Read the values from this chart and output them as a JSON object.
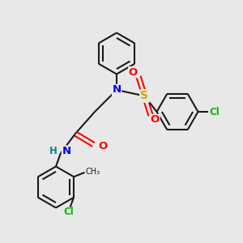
{
  "bg_color": "#e8e8e8",
  "bond_color": "#1a1a1a",
  "N_color": "#0000ee",
  "O_color": "#ff0000",
  "S_color": "#ccaa00",
  "Cl_color": "#00bb00",
  "H_color": "#008888",
  "line_width": 1.5,
  "font_size": 8.5,
  "fig_size": [
    3.0,
    3.0
  ],
  "dpi": 100,
  "xlim": [
    0,
    10
  ],
  "ylim": [
    0,
    10
  ]
}
